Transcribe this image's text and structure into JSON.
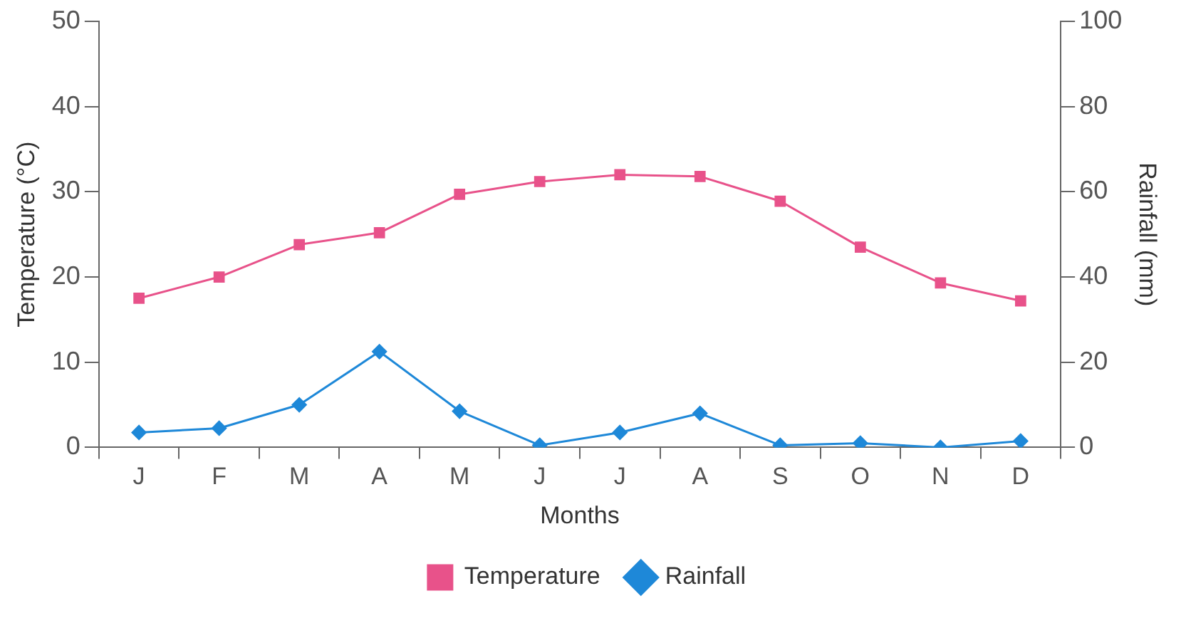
{
  "chart_data": {
    "type": "line",
    "xlabel": "Months",
    "ylabel": "Temperature (°C)",
    "y2label": "Rainfall (mm)",
    "categories": [
      "J",
      "F",
      "M",
      "A",
      "M",
      "J",
      "J",
      "A",
      "S",
      "O",
      "N",
      "D"
    ],
    "series": [
      {
        "name": "Temperature",
        "color": "#e8528a",
        "marker": "square",
        "values": [
          17.5,
          20,
          23.8,
          25.2,
          29.7,
          31.2,
          32,
          31.8,
          28.9,
          23.5,
          19.3,
          17.2
        ]
      },
      {
        "name": "Rainfall",
        "color": "#1e88d8",
        "marker": "diamond",
        "axis": "y2",
        "values": [
          3.5,
          4.5,
          10,
          22.5,
          8.5,
          0.5,
          3.5,
          8,
          0.5,
          1,
          0,
          1.5
        ]
      }
    ],
    "ylim": [
      0,
      50
    ],
    "yticks": [
      0,
      10,
      20,
      30,
      40,
      50
    ],
    "y2lim": [
      0,
      100
    ],
    "y2ticks": [
      0,
      20,
      40,
      60,
      80,
      100
    ],
    "grid": false,
    "legend": "bottom",
    "line_style": "solid"
  }
}
